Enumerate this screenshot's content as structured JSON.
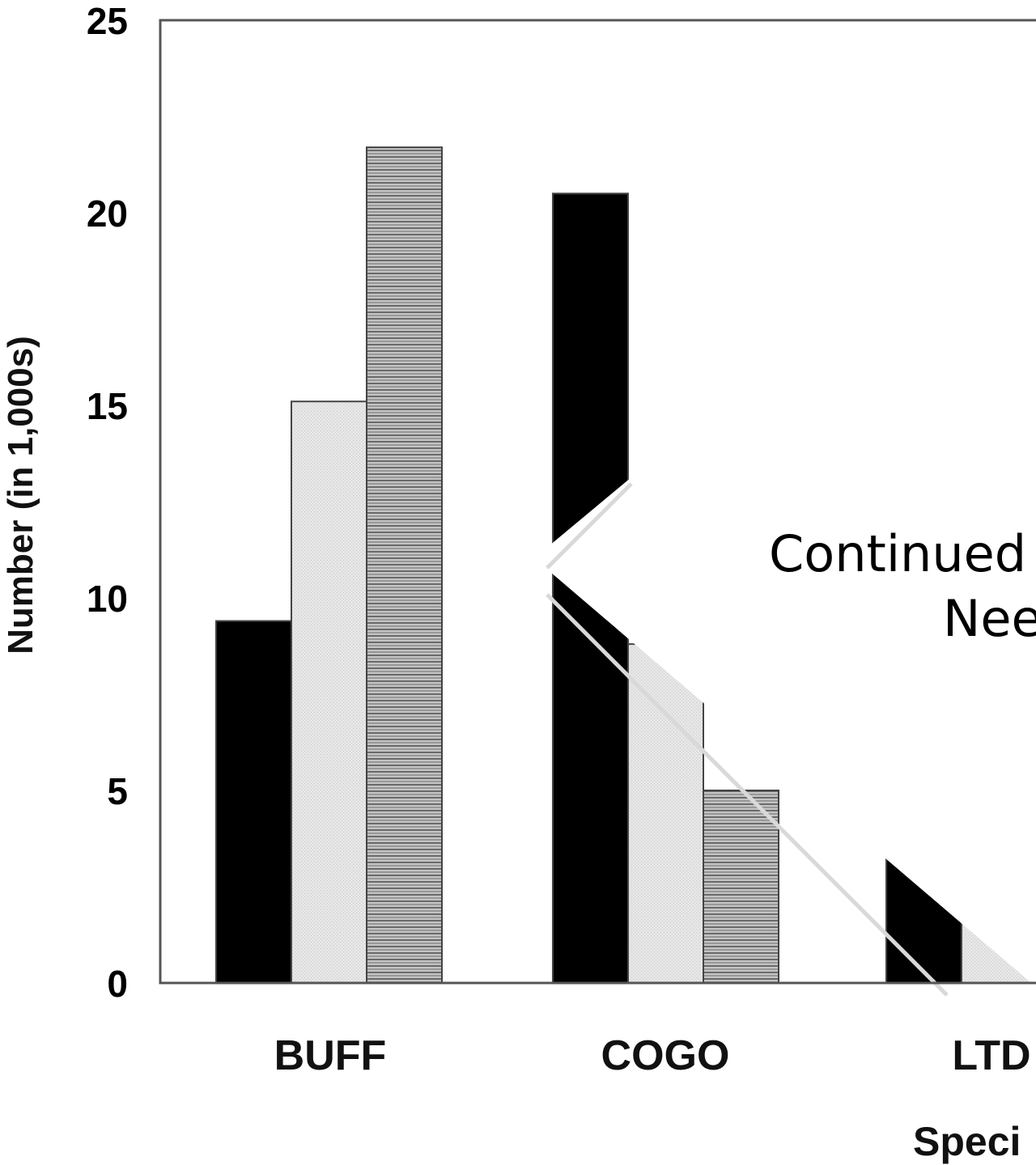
{
  "chart_data": {
    "type": "bar",
    "categories": [
      "BUFF",
      "COGO",
      "LTD"
    ],
    "category_labels_visible": [
      "BUFF",
      "COGO",
      "LTD"
    ],
    "series": [
      {
        "values": [
          9.4,
          20.5,
          3.8
        ],
        "fill": "#000000"
      },
      {
        "values": [
          15.1,
          8.8,
          1.8
        ],
        "fill": "#e3e3e3"
      },
      {
        "values": [
          21.7,
          5.0,
          null
        ],
        "fill": "#b5b5b5"
      }
    ],
    "ylabel": "Number (in 1,000s)",
    "xlabel": "Speci",
    "ylim": [
      0,
      25
    ],
    "yticks": [
      "0",
      "5",
      "10",
      "15",
      "20",
      "25"
    ],
    "grid": false
  },
  "overlay": {
    "line1": "Continued",
    "line2": "Nee"
  }
}
